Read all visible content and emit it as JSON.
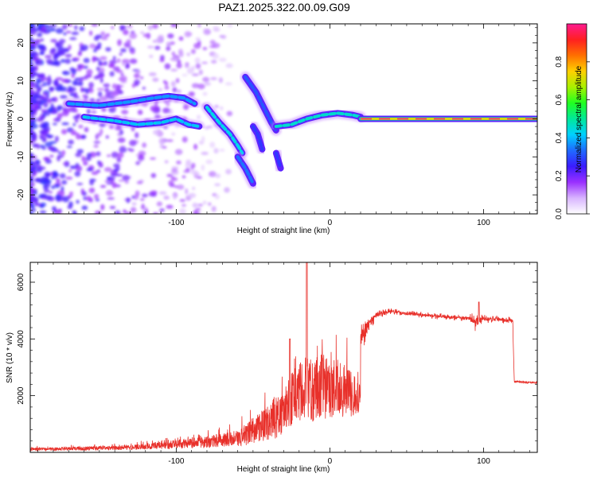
{
  "title": "PAZ1.2025.322.00.09.G09",
  "colors": {
    "snr_line": "#e8302a",
    "axes": "#000000",
    "background": "#ffffff"
  },
  "chart_data": [
    {
      "type": "heatmap",
      "xlabel": "Height of straight line (km)",
      "ylabel": "Frequency (Hz)",
      "xlim": [
        -195,
        135
      ],
      "ylim": [
        -25,
        25
      ],
      "xticks": [
        -100,
        0,
        100
      ],
      "xtick_labels": [
        "-100",
        "0",
        "100"
      ],
      "yticks": [
        -20,
        -10,
        0,
        10,
        20
      ],
      "ytick_labels": [
        "-20",
        "-10",
        "0",
        "10",
        "20"
      ],
      "colorbar": {
        "label": "Normalized spectral amplitude",
        "range": [
          0,
          1
        ],
        "ticks": [
          0,
          0.2,
          0.4,
          0.6,
          0.8
        ],
        "tick_labels": [
          "0.0",
          "0.2",
          "0.4",
          "0.6",
          "0.8"
        ],
        "colormap": [
          "#ffffff",
          "#d8b4ff",
          "#9a30ff",
          "#3a1cff",
          "#1f6aff",
          "#00d0ff",
          "#00e89a",
          "#20ff20",
          "#a8f000",
          "#ffd000",
          "#ff7000",
          "#ff2020",
          "#ff1a90"
        ]
      },
      "ridges": [
        {
          "points": [
            [
              -170,
              4
            ],
            [
              -150,
              3.5
            ],
            [
              -130,
              4.5
            ],
            [
              -115,
              5.5
            ],
            [
              -105,
              6
            ],
            [
              -95,
              5.5
            ],
            [
              -88,
              4
            ]
          ],
          "strength": 0.45
        },
        {
          "points": [
            [
              -160,
              0.5
            ],
            [
              -140,
              -0.5
            ],
            [
              -125,
              -1.5
            ],
            [
              -110,
              -1
            ],
            [
              -100,
              0
            ],
            [
              -92,
              -1.5
            ],
            [
              -85,
              -2
            ]
          ],
          "strength": 0.5
        },
        {
          "points": [
            [
              -80,
              3
            ],
            [
              -72,
              -1
            ],
            [
              -65,
              -4
            ],
            [
              -60,
              -7
            ],
            [
              -57,
              -9
            ]
          ],
          "strength": 0.55
        },
        {
          "points": [
            [
              -60,
              -10
            ],
            [
              -55,
              -13
            ],
            [
              -50,
              -17
            ]
          ],
          "strength": 0.4
        },
        {
          "points": [
            [
              -55,
              11
            ],
            [
              -48,
              7
            ],
            [
              -43,
              3
            ],
            [
              -38,
              -1
            ],
            [
              -35,
              -3
            ]
          ],
          "strength": 0.35
        },
        {
          "points": [
            [
              -50,
              -2
            ],
            [
              -47,
              -4
            ],
            [
              -44,
              -8
            ]
          ],
          "strength": 0.3
        },
        {
          "points": [
            [
              -35,
              -9
            ],
            [
              -32,
              -13
            ]
          ],
          "strength": 0.3
        },
        {
          "points": [
            [
              -35,
              -2
            ],
            [
              -25,
              -1.5
            ],
            [
              -15,
              0
            ],
            [
              -5,
              1
            ],
            [
              5,
              1.5
            ],
            [
              15,
              1
            ],
            [
              20,
              0.5
            ]
          ],
          "strength": 0.6
        },
        {
          "points": [
            [
              20,
              0
            ],
            [
              60,
              0
            ],
            [
              100,
              0
            ],
            [
              135,
              0
            ]
          ],
          "strength": 1.0
        }
      ]
    },
    {
      "type": "line",
      "xlabel": "Height of straight line (km)",
      "ylabel": "SNR (10 * v/v)",
      "xlim": [
        -195,
        135
      ],
      "ylim": [
        0,
        6700
      ],
      "xticks": [
        -100,
        0,
        100
      ],
      "xtick_labels": [
        "-100",
        "0",
        "100"
      ],
      "yticks": [
        2000,
        4000,
        6000
      ],
      "ytick_labels": [
        "2000",
        "4000",
        "6000"
      ],
      "series": [
        {
          "envelope": [
            [
              -195,
              150
            ],
            [
              -160,
              180
            ],
            [
              -130,
              250
            ],
            [
              -100,
              350
            ],
            [
              -80,
              450
            ],
            [
              -60,
              600
            ],
            [
              -45,
              900
            ],
            [
              -35,
              1400
            ],
            [
              -28,
              2000
            ],
            [
              -25,
              2700
            ],
            [
              -22,
              3400
            ],
            [
              -20,
              3000
            ],
            [
              -15,
              3600
            ],
            [
              -12,
              3000
            ],
            [
              -8,
              3300
            ],
            [
              -5,
              3200
            ],
            [
              0,
              3300
            ],
            [
              5,
              3500
            ],
            [
              10,
              3300
            ],
            [
              15,
              3700
            ],
            [
              20,
              4100
            ],
            [
              25,
              4500
            ],
            [
              30,
              4850
            ],
            [
              40,
              4980
            ],
            [
              50,
              4900
            ],
            [
              60,
              4850
            ],
            [
              70,
              4800
            ],
            [
              80,
              4760
            ],
            [
              90,
              4730
            ],
            [
              95,
              4600
            ],
            [
              100,
              4700
            ],
            [
              110,
              4700
            ],
            [
              119,
              4650
            ],
            [
              120,
              2500
            ],
            [
              135,
              2450
            ]
          ],
          "noise_amplitude": [
            [
              -195,
              80
            ],
            [
              -130,
              120
            ],
            [
              -80,
              300
            ],
            [
              -60,
              400
            ],
            [
              -45,
              800
            ],
            [
              -30,
              1200
            ],
            [
              -20,
              1500
            ],
            [
              -10,
              1700
            ],
            [
              0,
              1700
            ],
            [
              10,
              1400
            ],
            [
              20,
              700
            ],
            [
              30,
              150
            ],
            [
              40,
              100
            ],
            [
              90,
              120
            ],
            [
              95,
              350
            ],
            [
              100,
              150
            ],
            [
              119,
              130
            ],
            [
              120,
              60
            ],
            [
              135,
              60
            ]
          ],
          "spikes": [
            [
              -15,
              6700
            ],
            [
              97,
              5300
            ],
            [
              -26,
              4000
            ]
          ]
        }
      ]
    }
  ]
}
